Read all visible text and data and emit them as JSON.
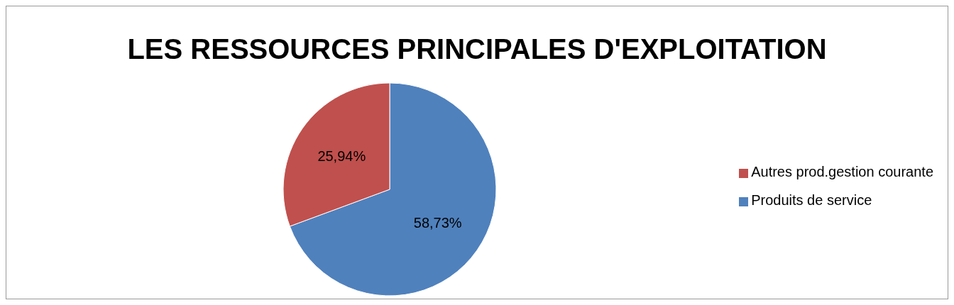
{
  "chart_data": {
    "type": "pie",
    "title": "LES RESSOURCES PRINCIPALES D'EXPLOITATION",
    "categories": [
      "Produits de service",
      "Autres prod.gestion courante"
    ],
    "values": [
      58.73,
      25.94
    ],
    "colors": [
      "#4f81bd",
      "#c0504d"
    ],
    "value_labels": [
      "58,73%",
      "25,94%"
    ],
    "legend": "right"
  }
}
